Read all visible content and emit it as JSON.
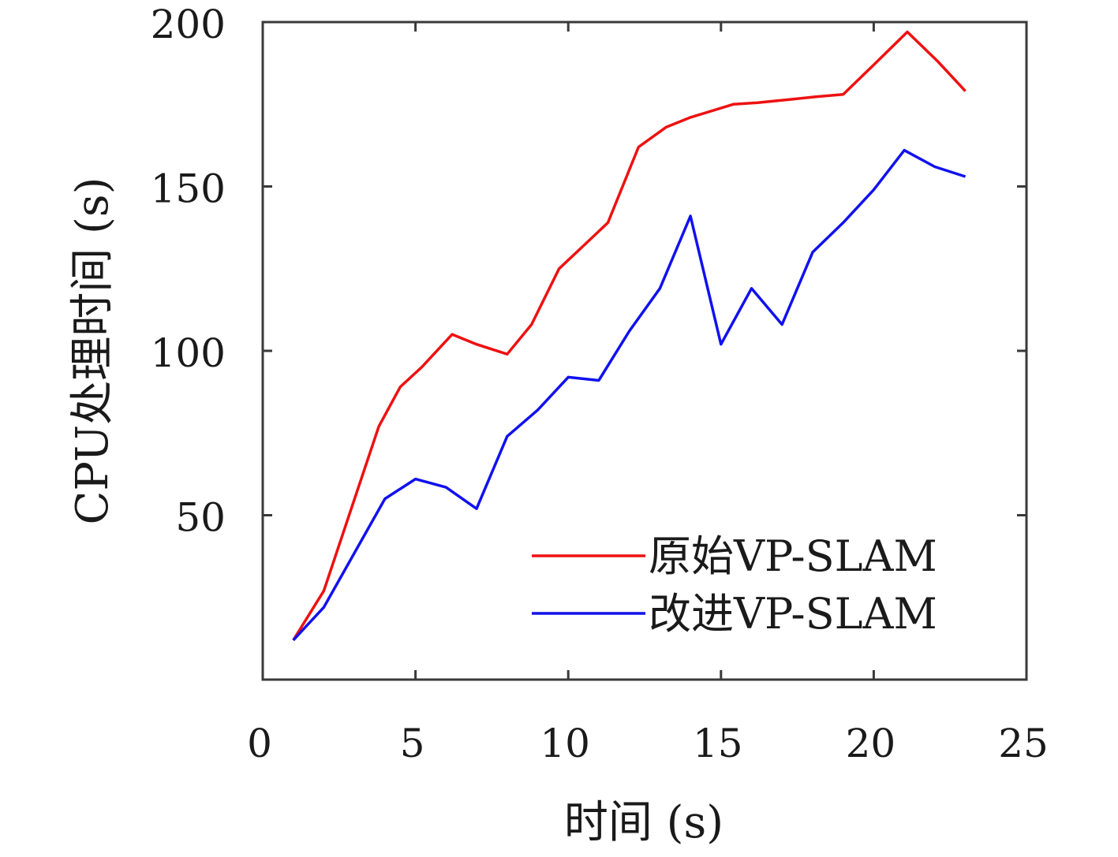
{
  "chart_data": {
    "type": "line",
    "title": "",
    "xlabel": "时间 (s)",
    "ylabel": "CPU处理时间 (s)",
    "xlim": [
      0,
      25
    ],
    "ylim": [
      0,
      200
    ],
    "xticks": [
      0,
      5,
      10,
      15,
      20,
      25
    ],
    "yticks": [
      50,
      100,
      150,
      200
    ],
    "xtick_labels": [
      "0",
      "5",
      "10",
      "15",
      "20",
      "25"
    ],
    "ytick_labels": [
      "50",
      "100",
      "150",
      "200"
    ],
    "grid": false,
    "legend_position": "bottom-right",
    "series": [
      {
        "name": "原始VP-SLAM",
        "color": "#ee1111",
        "x": [
          1,
          2,
          3.8,
          4.5,
          5.2,
          6.2,
          7,
          8,
          8.8,
          9.7,
          10.5,
          11.3,
          12.3,
          13.2,
          14,
          15.4,
          16.2,
          17.2,
          18.1,
          19,
          20,
          21.1,
          22.1,
          23
        ],
        "y": [
          12,
          27,
          77,
          89,
          95,
          105,
          102,
          99,
          108,
          125,
          132,
          139,
          162,
          168,
          171,
          175,
          175.5,
          176.4,
          177.3,
          178,
          187,
          197,
          188,
          179
        ]
      },
      {
        "name": "改进VP-SLAM",
        "color": "#1111ee",
        "x": [
          1,
          2,
          4,
          5,
          6,
          7,
          8,
          9,
          10,
          11,
          12,
          13,
          14,
          15,
          16,
          17,
          18,
          19,
          20,
          21,
          22,
          23
        ],
        "y": [
          12,
          22,
          55,
          61,
          58.5,
          52,
          74,
          82,
          92,
          91,
          106,
          119,
          141,
          102,
          119,
          108,
          130,
          139,
          149,
          161,
          156,
          153
        ]
      }
    ]
  }
}
